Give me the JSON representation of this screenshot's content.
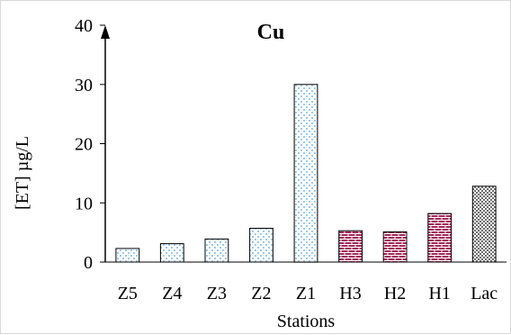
{
  "chart_data": {
    "type": "bar",
    "title": "Cu",
    "xlabel": "Stations",
    "ylabel": "[ET] µg/L",
    "ylim": [
      0,
      40
    ],
    "yticks": [
      0,
      10,
      20,
      30,
      40
    ],
    "grid": false,
    "categories": [
      "Z5",
      "Z4",
      "Z3",
      "Z2",
      "Z1",
      "H3",
      "H2",
      "H1",
      "Lac"
    ],
    "values": [
      2.3,
      3.1,
      3.9,
      5.7,
      30.0,
      5.3,
      5.1,
      8.2,
      12.8
    ],
    "bar_patterns": [
      "blue-dots",
      "blue-dots",
      "blue-dots",
      "blue-dots",
      "blue-dots",
      "magenta-bricks",
      "magenta-bricks",
      "magenta-bricks",
      "gray-checker"
    ],
    "colors": {
      "zone": "#9ec8e6",
      "harbor": "#a0285a",
      "lake": "#6e6e6e",
      "axis": "#000000"
    }
  }
}
